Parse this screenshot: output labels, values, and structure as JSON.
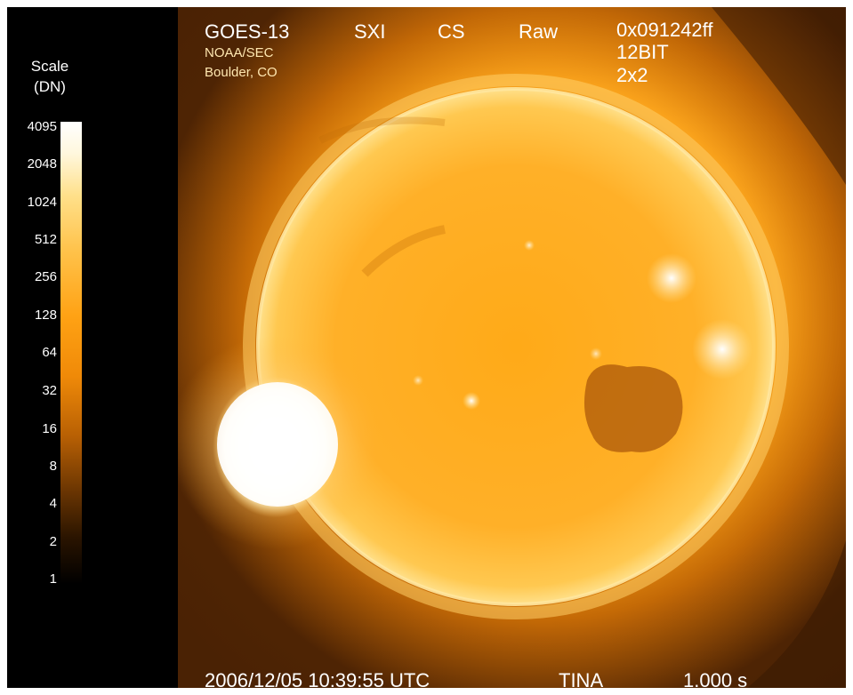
{
  "header": {
    "satellite": "GOES-13",
    "instrument": "SXI",
    "mode": "CS",
    "data_type": "Raw",
    "hex_code": "0x091242ff",
    "bit_depth": "12BIT",
    "binning": "2x2",
    "agency": "NOAA/SEC",
    "location": "Boulder, CO"
  },
  "scale": {
    "title_line1": "Scale",
    "title_line2": "(DN)",
    "ticks": [
      "4095",
      "2048",
      "1024",
      "512",
      "256",
      "128",
      "64",
      "32",
      "16",
      "8",
      "4",
      "2",
      "1"
    ]
  },
  "footer": {
    "timestamp": "2006/12/05 10:39:55 UTC",
    "filter": "TINA",
    "exposure": "1.000 s"
  },
  "colors": {
    "frame_background": "#000000",
    "sun_core": "#ffb020",
    "sun_limb": "#ffd060",
    "flare": "#ffffff",
    "text": "#ffffff"
  }
}
